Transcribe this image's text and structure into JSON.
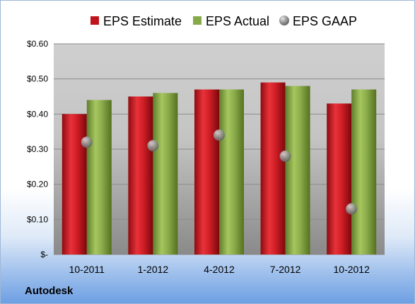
{
  "company": "Autodesk",
  "chart_data": {
    "type": "bar",
    "categories": [
      "10-2011",
      "1-2012",
      "4-2012",
      "7-2012",
      "10-2012"
    ],
    "series": [
      {
        "name": "EPS Estimate",
        "kind": "bar",
        "color": "#c0141c",
        "values": [
          0.4,
          0.45,
          0.47,
          0.49,
          0.43
        ]
      },
      {
        "name": "EPS Actual",
        "kind": "bar",
        "color": "#86a94a",
        "values": [
          0.44,
          0.46,
          0.47,
          0.48,
          0.47
        ]
      },
      {
        "name": "EPS GAAP",
        "kind": "marker",
        "color": "#a8a8a8",
        "values": [
          0.32,
          0.31,
          0.34,
          0.28,
          0.13
        ]
      }
    ],
    "ylim": [
      0,
      0.6
    ],
    "yticks": [
      0,
      0.1,
      0.2,
      0.3,
      0.4,
      0.5,
      0.6
    ],
    "ytick_labels": [
      "$-",
      "$0.10",
      "$0.20",
      "$0.30",
      "$0.40",
      "$0.50",
      "$0.60"
    ],
    "grid": true,
    "legend_position": "top"
  }
}
